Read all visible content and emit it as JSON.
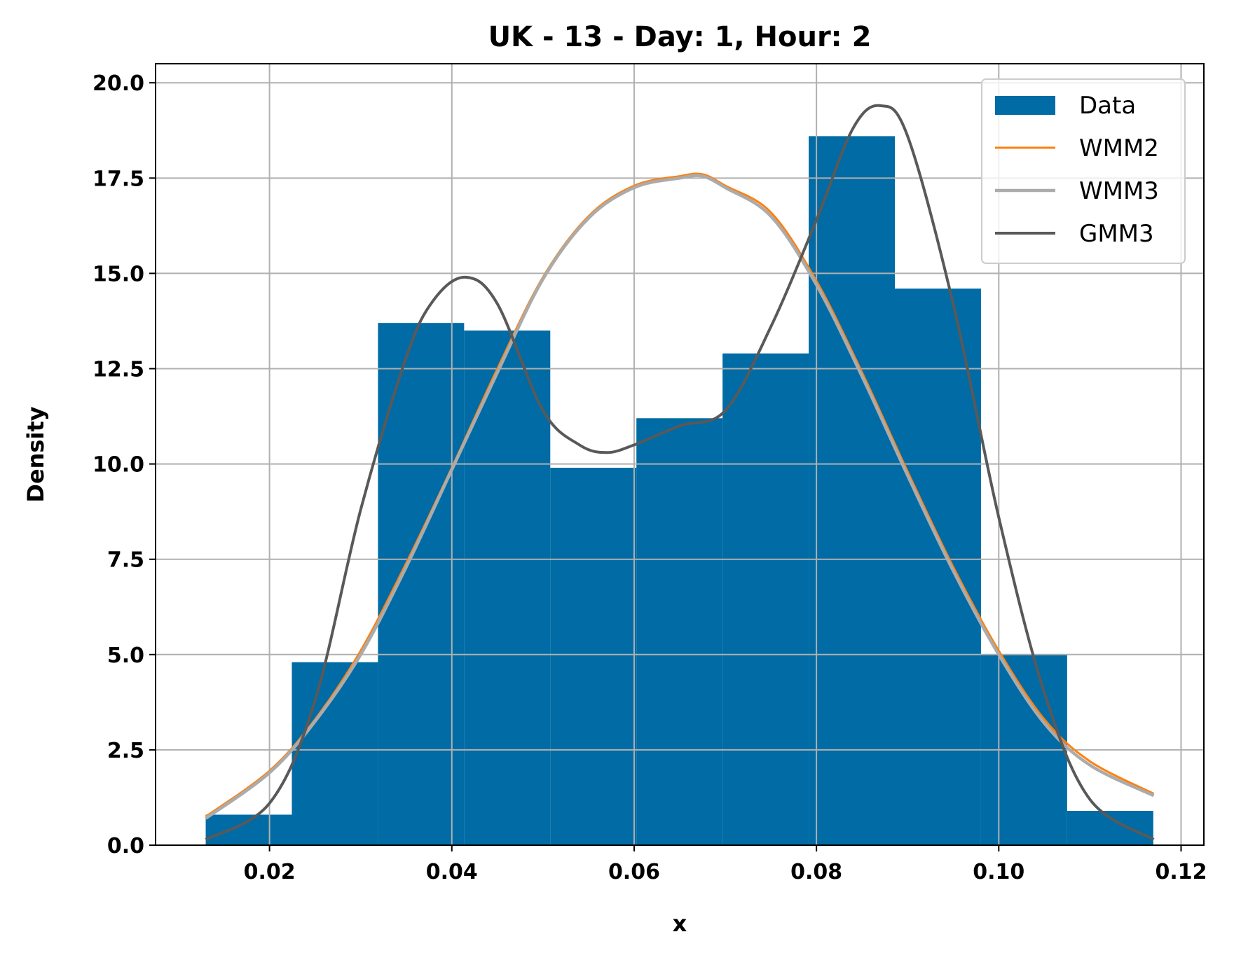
{
  "chart_data": {
    "type": "bar",
    "title": "UK - 13 - Day: 1, Hour: 2",
    "xlabel": "x",
    "ylabel": "Density",
    "xlim": [
      0.0075,
      0.1225
    ],
    "ylim": [
      0,
      20.5
    ],
    "grid": true,
    "legend_position": "top-right",
    "x_ticks": [
      0.02,
      0.04,
      0.06,
      0.08,
      0.1,
      0.12
    ],
    "x_tick_labels": [
      "0.02",
      "0.04",
      "0.06",
      "0.08",
      "0.10",
      "0.12"
    ],
    "y_ticks": [
      0,
      2.5,
      5,
      7.5,
      10,
      12.5,
      15,
      17.5,
      20
    ],
    "y_tick_labels": [
      "0.0",
      "2.5",
      "5.0",
      "7.5",
      "10.0",
      "12.5",
      "15.0",
      "17.5",
      "20.0"
    ],
    "histogram": {
      "name": "Data",
      "color": "#006ba4",
      "bin_edges": [
        0.013,
        0.02245,
        0.0319,
        0.04135,
        0.0508,
        0.06025,
        0.0697,
        0.07915,
        0.0886,
        0.09805,
        0.1075,
        0.11695
      ],
      "values": [
        0.8,
        4.8,
        13.7,
        13.5,
        9.9,
        11.2,
        12.9,
        18.6,
        14.6,
        5.0,
        0.9
      ]
    },
    "series": [
      {
        "name": "WMM2",
        "color": "#ff800e",
        "x": [
          0.013,
          0.02,
          0.025,
          0.03,
          0.035,
          0.04,
          0.045,
          0.05,
          0.055,
          0.06,
          0.065,
          0.0675,
          0.07,
          0.075,
          0.08,
          0.085,
          0.09,
          0.095,
          0.1,
          0.105,
          0.11,
          0.117
        ],
        "y": [
          0.75,
          1.95,
          3.3,
          5.1,
          7.4,
          9.9,
          12.5,
          14.9,
          16.5,
          17.3,
          17.55,
          17.6,
          17.3,
          16.6,
          14.8,
          12.4,
          9.8,
          7.3,
          5.1,
          3.3,
          2.2,
          1.35
        ]
      },
      {
        "name": "WMM3",
        "color": "#ababab",
        "x": [
          0.013,
          0.02,
          0.025,
          0.03,
          0.035,
          0.04,
          0.045,
          0.05,
          0.055,
          0.06,
          0.065,
          0.0675,
          0.07,
          0.075,
          0.08,
          0.085,
          0.09,
          0.095,
          0.1,
          0.105,
          0.11,
          0.117
        ],
        "y": [
          0.7,
          1.9,
          3.25,
          5.0,
          7.3,
          9.85,
          12.4,
          14.85,
          16.45,
          17.25,
          17.5,
          17.55,
          17.25,
          16.5,
          14.7,
          12.3,
          9.7,
          7.2,
          5.0,
          3.2,
          2.1,
          1.3
        ]
      },
      {
        "name": "GMM3",
        "color": "#595959",
        "x": [
          0.013,
          0.02,
          0.025,
          0.03,
          0.035,
          0.038,
          0.0415,
          0.045,
          0.05,
          0.054,
          0.057,
          0.06,
          0.065,
          0.07,
          0.075,
          0.08,
          0.084,
          0.087,
          0.09,
          0.095,
          0.1,
          0.105,
          0.11,
          0.117
        ],
        "y": [
          0.15,
          1.1,
          3.8,
          8.8,
          12.8,
          14.3,
          14.9,
          14.2,
          11.4,
          10.5,
          10.3,
          10.5,
          11.0,
          11.4,
          13.6,
          16.4,
          18.8,
          19.4,
          18.6,
          14.2,
          8.6,
          4.0,
          1.2,
          0.15
        ]
      }
    ]
  }
}
